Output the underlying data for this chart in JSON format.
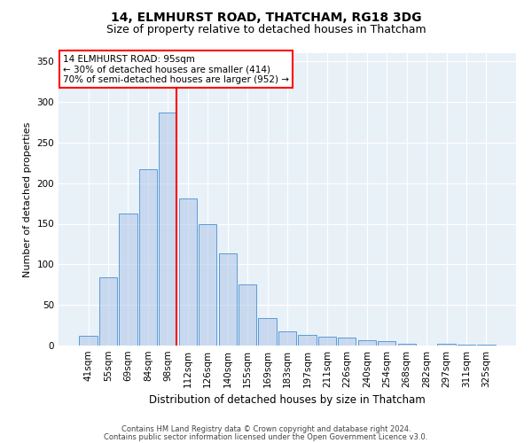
{
  "title": "14, ELMHURST ROAD, THATCHAM, RG18 3DG",
  "subtitle": "Size of property relative to detached houses in Thatcham",
  "xlabel": "Distribution of detached houses by size in Thatcham",
  "ylabel": "Number of detached properties",
  "bar_labels": [
    "41sqm",
    "55sqm",
    "69sqm",
    "84sqm",
    "98sqm",
    "112sqm",
    "126sqm",
    "140sqm",
    "155sqm",
    "169sqm",
    "183sqm",
    "197sqm",
    "211sqm",
    "226sqm",
    "240sqm",
    "254sqm",
    "268sqm",
    "282sqm",
    "297sqm",
    "311sqm",
    "325sqm"
  ],
  "bar_values": [
    12,
    84,
    163,
    217,
    287,
    181,
    150,
    113,
    75,
    34,
    18,
    13,
    11,
    10,
    7,
    5,
    2,
    0,
    2,
    1,
    1
  ],
  "bar_color_rgb": [
    0.682,
    0.776,
    0.91
  ],
  "bar_edge_color": "#5b9bd5",
  "bar_alpha": 0.55,
  "vline_x_index": 4,
  "vline_color": "red",
  "annotation_box_text": "14 ELMHURST ROAD: 95sqm\n← 30% of detached houses are smaller (414)\n70% of semi-detached houses are larger (952) →",
  "ylim": [
    0,
    360
  ],
  "yticks": [
    0,
    50,
    100,
    150,
    200,
    250,
    300,
    350
  ],
  "footer_line1": "Contains HM Land Registry data © Crown copyright and database right 2024.",
  "footer_line2": "Contains public sector information licensed under the Open Government Licence v3.0.",
  "background_color": "#e8f0f8",
  "title_fontsize": 10,
  "subtitle_fontsize": 9,
  "ylabel_fontsize": 8,
  "xlabel_fontsize": 8.5,
  "tick_fontsize": 7.5,
  "annotation_fontsize": 7.5,
  "footer_fontsize": 6
}
